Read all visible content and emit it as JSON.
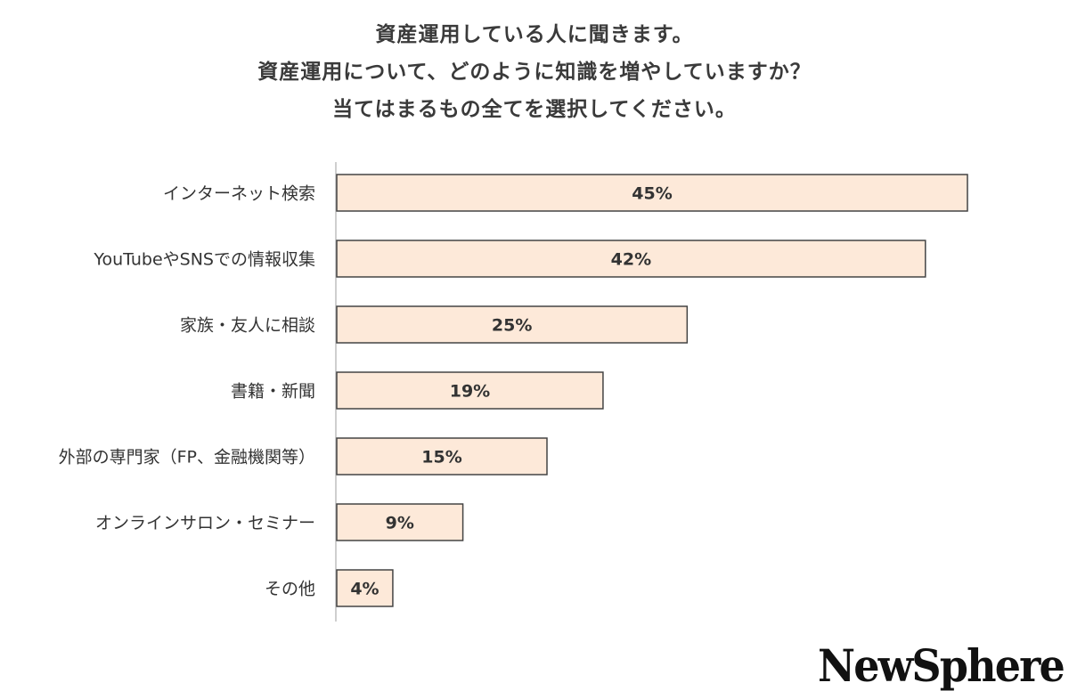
{
  "title_lines": [
    "資産運用している人に聞きます。",
    "資産運用について、どのように知識を増やしていますか？",
    "当てはまるもの全てを選択してください。"
  ],
  "chart_data": {
    "type": "bar",
    "orientation": "horizontal",
    "categories": [
      "インターネット検索",
      "YouTubeやSNSでの情報収集",
      "家族・友人に相談",
      "書籍・新聞",
      "外部の専門家（FP、金融機関等）",
      "オンラインサロン・セミナー",
      "その他"
    ],
    "values": [
      45,
      42,
      25,
      19,
      15,
      9,
      4
    ],
    "value_labels": [
      "45%",
      "42%",
      "25%",
      "19%",
      "15%",
      "9%",
      "4%"
    ],
    "unit": "%",
    "grid": false,
    "legend": "none"
  },
  "colors": {
    "bar_fill": "#fde9d9",
    "bar_stroke": "#444444",
    "axis": "#bfbfbf",
    "text": "#333333"
  },
  "brand": {
    "logo_text": "NewSphere"
  }
}
